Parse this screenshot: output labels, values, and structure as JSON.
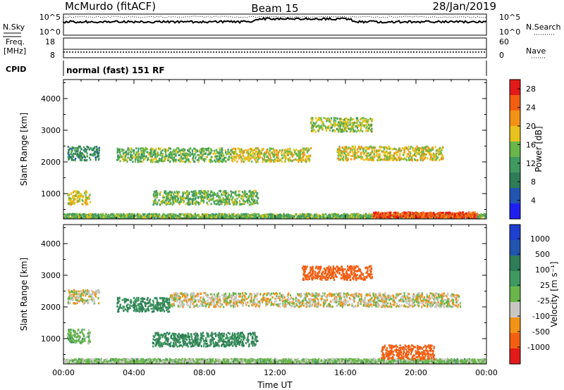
{
  "header": {
    "station": "McMurdo (fitACF)",
    "beam": "Beam 15",
    "date": "28/Jan/2019"
  },
  "panels": {
    "nsky": {
      "left_label": "N.Sky",
      "right_label": "N.Search",
      "left_ticks": [
        "10^5",
        "10^0"
      ],
      "right_ticks": [
        "10^5",
        "10^0"
      ]
    },
    "freq": {
      "left_label_1": "Freq.",
      "left_label_2": "[MHz]",
      "right_label": "Nave",
      "left_ticks": [
        "18",
        "8"
      ],
      "right_ticks": [
        "60",
        "0"
      ]
    },
    "cpid": {
      "label": "CPID",
      "text": "normal (fast) 151 RF"
    }
  },
  "colors": {
    "power_scale": [
      "#1f1ff0",
      "#2255b0",
      "#2e7d56",
      "#3f9960",
      "#6ab64a",
      "#e8c21c",
      "#f29216",
      "#f25e12",
      "#e31a1a"
    ],
    "velocity_scale": [
      "#e31a1a",
      "#f25e12",
      "#f29216",
      "#c8c7c2",
      "#6ab64a",
      "#3f9960",
      "#2e7d56",
      "#2255b0",
      "#1f3fd0"
    ]
  },
  "chart_data": [
    {
      "type": "heatmap",
      "name": "power",
      "ylabel": "Slant Range [km]",
      "y_ticks": [
        "1000",
        "2000",
        "3000",
        "4000"
      ],
      "ylim": [
        200,
        4600
      ],
      "x_ticks": [
        "00:00",
        "04:00",
        "08:00",
        "12:00",
        "16:00",
        "20:00",
        "00:00"
      ],
      "colorbar_label": "Power [dB]",
      "colorbar_ticks": [
        "4",
        "8",
        "12",
        "16",
        "20",
        "24",
        "28"
      ],
      "colorbar_range": [
        0,
        30
      ],
      "features": [
        {
          "t_start_h": 0.0,
          "t_end_h": 24.0,
          "range_km": 300,
          "value": 14
        },
        {
          "t_start_h": 0.2,
          "t_end_h": 2.0,
          "range_km": 2300,
          "value": 10
        },
        {
          "t_start_h": 3.0,
          "t_end_h": 9.5,
          "range_km": 2250,
          "value": 14
        },
        {
          "t_start_h": 9.5,
          "t_end_h": 14.0,
          "range_km": 2250,
          "value": 18
        },
        {
          "t_start_h": 14.0,
          "t_end_h": 17.5,
          "range_km": 3200,
          "value": 16
        },
        {
          "t_start_h": 15.5,
          "t_end_h": 21.5,
          "range_km": 2300,
          "value": 18
        },
        {
          "t_start_h": 0.2,
          "t_end_h": 1.5,
          "range_km": 900,
          "value": 18
        },
        {
          "t_start_h": 5.0,
          "t_end_h": 11.0,
          "range_km": 900,
          "value": 14
        },
        {
          "t_start_h": 17.5,
          "t_end_h": 23.5,
          "range_km": 350,
          "value": 26
        }
      ]
    },
    {
      "type": "heatmap",
      "name": "velocity",
      "ylabel": "Slant Range [km]",
      "y_ticks": [
        "1000",
        "2000",
        "3000",
        "4000"
      ],
      "ylim": [
        200,
        4600
      ],
      "x_ticks": [
        "00:00",
        "04:00",
        "08:00",
        "12:00",
        "16:00",
        "20:00",
        "00:00"
      ],
      "xlabel": "Time UT",
      "colorbar_label": "Velocity [m s⁻¹]",
      "colorbar_ticks": [
        "1000",
        "500",
        "100",
        "25",
        "-25",
        "-100",
        "-500",
        "-1000"
      ],
      "features": [
        {
          "t_start_h": 0.0,
          "t_end_h": 24.0,
          "range_km": 300,
          "value": 50
        },
        {
          "t_start_h": 0.2,
          "t_end_h": 2.0,
          "range_km": 2350,
          "value": 0
        },
        {
          "t_start_h": 3.0,
          "t_end_h": 6.0,
          "range_km": 2100,
          "value": 300
        },
        {
          "t_start_h": 6.0,
          "t_end_h": 22.5,
          "range_km": 2250,
          "value": 0
        },
        {
          "t_start_h": 13.5,
          "t_end_h": 17.5,
          "range_km": 3100,
          "value": -300
        },
        {
          "t_start_h": 0.2,
          "t_end_h": 1.5,
          "range_km": 1100,
          "value": 80
        },
        {
          "t_start_h": 5.0,
          "t_end_h": 11.0,
          "range_km": 1000,
          "value": 300
        },
        {
          "t_start_h": 18.0,
          "t_end_h": 21.0,
          "range_km": 600,
          "value": -300
        }
      ]
    }
  ]
}
